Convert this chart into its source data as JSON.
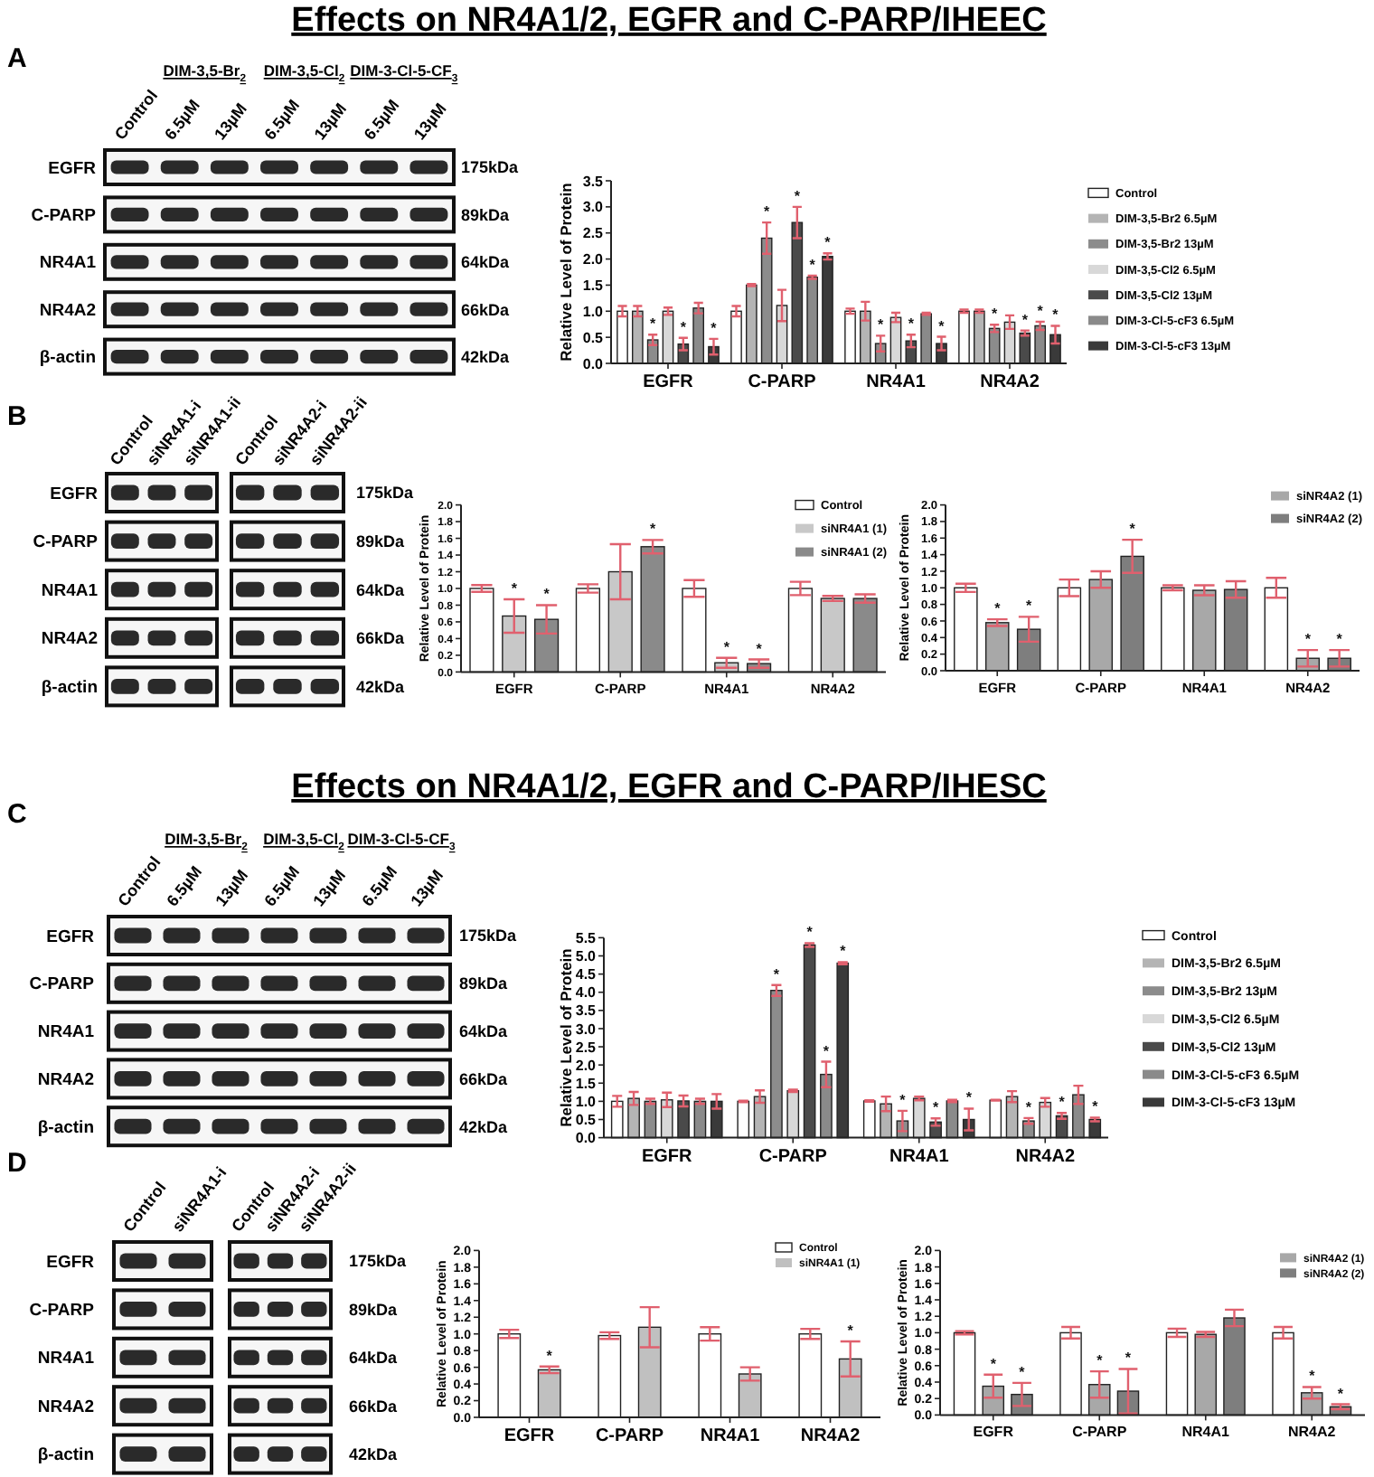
{
  "chart_data": [
    {
      "type": "other",
      "title": "Effects on NR4A1/2, EGFR and C-PARP/IHEEC"
    },
    {
      "type": "other",
      "title": "A",
      "categories": [
        "Control",
        "6.5µM",
        "13µM",
        "6.5µM",
        "13µM",
        "6.5µM",
        "13µM"
      ],
      "y_categories": [
        "EGFR",
        "C-PARP",
        "NR4A1",
        "NR4A2",
        "β-actin"
      ],
      "y2_categories": [
        "175kDa",
        "89kDa",
        "64kDa",
        "66kDa",
        "42kDa"
      ],
      "annotations": [
        "DIM-3,5-Br$_{2}$",
        "DIM-3,5-Cl$_{2}$",
        "DIM-3-Cl-5-CF$_{3}$"
      ]
    },
    {
      "type": "bar",
      "categories": [
        "EGFR",
        "C-PARP",
        "NR4A1",
        "NR4A2"
      ],
      "ylabel": "Relative Level of Protein",
      "ylim": [
        0,
        3.5
      ],
      "yticks": [
        {
          "value": 0,
          "label": "0.0"
        },
        0.5,
        {
          "value": 1,
          "label": "1.0"
        },
        1.5,
        {
          "value": 2,
          "label": "2.0"
        },
        2.5,
        {
          "value": 3,
          "label": "3.0"
        },
        3.5
      ],
      "legend": "right",
      "series": [
        {
          "name": "Control",
          "color": "#ffffff",
          "values": [
            1.0,
            1.0,
            1.0,
            1.0
          ],
          "errors": [
            0.1,
            0.1,
            0.05,
            0.03
          ]
        },
        {
          "name": "DIM-3,5-Br2 6.5µM",
          "color": "#b4b4b4",
          "values": [
            1.0,
            1.5,
            1.0,
            1.0
          ],
          "errors": [
            0.1,
            0.02,
            0.18,
            0.03
          ]
        },
        {
          "name": "DIM-3,5-Br2 13µM",
          "color": "#8c8c8c",
          "values": [
            0.45,
            2.4,
            0.38,
            0.67
          ],
          "errors": [
            0.1,
            0.3,
            0.15,
            0.07
          ],
          "value_labels": [
            "*",
            "*",
            "*",
            "*"
          ]
        },
        {
          "name": "DIM-3,5-Cl2 6.5µM",
          "color": "#d8d8d8",
          "values": [
            1.0,
            1.11,
            0.88,
            0.79
          ],
          "errors": [
            0.07,
            0.3,
            0.09,
            0.13
          ]
        },
        {
          "name": "DIM-3,5-Cl2 13µM",
          "color": "#4a4a4a",
          "values": [
            0.37,
            2.7,
            0.43,
            0.58
          ],
          "errors": [
            0.12,
            0.3,
            0.12,
            0.05
          ],
          "value_labels": [
            "*",
            "*",
            "*",
            "*"
          ]
        },
        {
          "name": "DIM-3-Cl-5-cF3 6.5µM",
          "color": "#8a8a8a",
          "values": [
            1.06,
            1.65,
            0.95,
            0.72
          ],
          "errors": [
            0.1,
            0.03,
            0.02,
            0.08
          ],
          "value_labels": [
            null,
            "*",
            null,
            "*"
          ]
        },
        {
          "name": "DIM-3-Cl-5-cF3 13µM",
          "color": "#3a3a3a",
          "values": [
            0.32,
            2.05,
            0.38,
            0.55
          ],
          "errors": [
            0.15,
            0.06,
            0.13,
            0.17
          ],
          "value_labels": [
            "*",
            "*",
            "*",
            "*"
          ]
        }
      ]
    },
    {
      "type": "other",
      "title": "B",
      "categories": [
        "Control",
        "siNR4A1-i",
        "siNR4A1-ii"
      ],
      "y_categories": [
        "EGFR",
        "C-PARP",
        "NR4A1",
        "NR4A2",
        "β-actin"
      ]
    },
    {
      "type": "other",
      "categories": [
        "Control",
        "siNR4A2-i",
        "siNR4A2-ii"
      ],
      "y2_categories": [
        "175kDa",
        "89kDa",
        "64kDa",
        "66kDa",
        "42kDa"
      ]
    },
    {
      "type": "bar",
      "categories": [
        "EGFR",
        "C-PARP",
        "NR4A1",
        "NR4A2"
      ],
      "ylabel": "Relative Level of Protein",
      "ylim": [
        0,
        2
      ],
      "yticks": [
        {
          "value": 0,
          "label": "0.0"
        },
        0.2,
        0.4,
        0.6,
        0.8,
        {
          "value": 1,
          "label": "1.0"
        },
        1.2,
        1.4,
        1.6,
        1.8,
        {
          "value": 2,
          "label": "2.0"
        }
      ],
      "legend": "top right",
      "series": [
        {
          "name": "Control",
          "color": "#ffffff",
          "values": [
            1.0,
            1.0,
            1.0,
            1.0
          ],
          "errors": [
            0.04,
            0.05,
            0.1,
            0.08
          ]
        },
        {
          "name": "siNR4A1 (1)",
          "color": "#c8c8c8",
          "values": [
            0.67,
            1.2,
            0.11,
            0.88
          ],
          "errors": [
            0.2,
            0.33,
            0.06,
            0.03
          ],
          "value_labels": [
            "*",
            null,
            "*",
            null
          ]
        },
        {
          "name": "siNR4A1 (2)",
          "color": "#8a8a8a",
          "values": [
            0.63,
            1.5,
            0.1,
            0.88
          ],
          "errors": [
            0.17,
            0.08,
            0.05,
            0.05
          ],
          "value_labels": [
            "*",
            "*",
            "*",
            null
          ]
        }
      ]
    },
    {
      "type": "bar",
      "categories": [
        "EGFR",
        "C-PARP",
        "NR4A1",
        "NR4A2"
      ],
      "ylabel": "Relative Level of Protein",
      "ylim": [
        0,
        2
      ],
      "yticks": [
        {
          "value": 0,
          "label": "0.0"
        },
        0.2,
        0.4,
        0.6,
        0.8,
        {
          "value": 1,
          "label": "1.0"
        },
        1.2,
        1.4,
        1.6,
        1.8,
        {
          "value": 2,
          "label": "2.0"
        }
      ],
      "legend": "top right",
      "series": [
        {
          "color": "#ffffff",
          "values": [
            1.0,
            1.0,
            1.0,
            1.0
          ],
          "errors": [
            0.05,
            0.1,
            0.03,
            0.12
          ]
        },
        {
          "name": "siNR4A2 (1)",
          "color": "#a8a8a8",
          "values": [
            0.58,
            1.1,
            0.97,
            0.15
          ],
          "errors": [
            0.04,
            0.1,
            0.06,
            0.1
          ],
          "value_labels": [
            "*",
            null,
            null,
            "*"
          ]
        },
        {
          "name": "siNR4A2 (2)",
          "color": "#7e7e7e",
          "values": [
            0.5,
            1.38,
            0.98,
            0.15
          ],
          "errors": [
            0.15,
            0.2,
            0.1,
            0.1
          ],
          "value_labels": [
            "*",
            "*",
            null,
            "*"
          ]
        }
      ]
    },
    {
      "type": "other",
      "title": "Effects on NR4A1/2, EGFR and C-PARP/IHESC"
    },
    {
      "type": "other",
      "title": "C",
      "categories": [
        "Control",
        "6.5µM",
        "13µM",
        "6.5µM",
        "13µM",
        "6.5µM",
        "13µM"
      ],
      "y_categories": [
        "EGFR",
        "C-PARP",
        "NR4A1",
        "NR4A2",
        "β-actin"
      ],
      "y2_categories": [
        "175kDa",
        "89kDa",
        "64kDa",
        "66kDa",
        "42kDa"
      ],
      "annotations": [
        "DIM-3,5-Br$_{2}$",
        "DIM-3,5-Cl$_{2}$",
        "DIM-3-Cl-5-CF$_{3}$"
      ]
    },
    {
      "type": "bar",
      "categories": [
        "EGFR",
        "C-PARP",
        "NR4A1",
        "NR4A2"
      ],
      "ylabel": "Relative Level of Protein",
      "ylim": [
        0,
        5.5
      ],
      "yticks": [
        {
          "value": 0,
          "label": "0.0"
        },
        0.5,
        {
          "value": 1,
          "label": "1.0"
        },
        1.5,
        {
          "value": 2,
          "label": "2.0"
        },
        2.5,
        {
          "value": 3,
          "label": "3.0"
        },
        3.5,
        {
          "value": 4,
          "label": "4.0"
        },
        4.5,
        {
          "value": 5,
          "label": "5.0"
        },
        5.5
      ],
      "legend": "right",
      "series": [
        {
          "name": "Control",
          "color": "#ffffff",
          "values": [
            1.0,
            1.0,
            1.01,
            1.03
          ],
          "errors": [
            0.15,
            0.02,
            0.02,
            0.01
          ]
        },
        {
          "name": "DIM-3,5-Br2 6.5µM",
          "color": "#b4b4b4",
          "values": [
            1.08,
            1.13,
            0.93,
            1.13
          ],
          "errors": [
            0.18,
            0.17,
            0.2,
            0.15
          ]
        },
        {
          "name": "DIM-3,5-Br2 13µM",
          "color": "#8c8c8c",
          "values": [
            1.0,
            4.05,
            0.46,
            0.46
          ],
          "errors": [
            0.07,
            0.15,
            0.28,
            0.08
          ],
          "value_labels": [
            null,
            "*",
            "*",
            "*"
          ]
        },
        {
          "name": "DIM-3,5-Cl2 6.5µM",
          "color": "#d8d8d8",
          "values": [
            1.04,
            1.29,
            1.08,
            0.97
          ],
          "errors": [
            0.2,
            0.03,
            0.05,
            0.12
          ]
        },
        {
          "name": "DIM-3,5-Cl2 13µM",
          "color": "#4a4a4a",
          "values": [
            1.01,
            5.3,
            0.43,
            0.6
          ],
          "errors": [
            0.15,
            0.05,
            0.1,
            0.08
          ],
          "value_labels": [
            null,
            "*",
            "*",
            "*"
          ]
        },
        {
          "name": "DIM-3-Cl-5-cF3 6.5µM",
          "color": "#8a8a8a",
          "values": [
            1.0,
            1.74,
            1.01,
            1.18
          ],
          "errors": [
            0.07,
            0.35,
            0.03,
            0.25
          ],
          "value_labels": [
            null,
            "*",
            null,
            null
          ]
        },
        {
          "name": "DIM-3-Cl-5-cF3 13µM",
          "color": "#3a3a3a",
          "values": [
            1.0,
            4.8,
            0.5,
            0.5
          ],
          "errors": [
            0.2,
            0.03,
            0.3,
            0.05
          ],
          "value_labels": [
            null,
            "*",
            "*",
            "*"
          ]
        }
      ]
    },
    {
      "type": "other",
      "title": "D",
      "categories": [
        "Control",
        "siNR4A1-i"
      ],
      "y_categories": [
        "EGFR",
        "C-PARP",
        "NR4A1",
        "NR4A2",
        "β-actin"
      ]
    },
    {
      "type": "other",
      "categories": [
        "Control",
        "siNR4A2-i",
        "siNR4A2-ii"
      ],
      "y2_categories": [
        "175kDa",
        "89kDa",
        "64kDa",
        "66kDa",
        "42kDa"
      ]
    },
    {
      "type": "bar",
      "categories": [
        "EGFR",
        "C-PARP",
        "NR4A1",
        "NR4A2"
      ],
      "ylabel": "Relative Level of Protein",
      "ylim": [
        0,
        2
      ],
      "yticks": [
        {
          "value": 0,
          "label": "0.0"
        },
        0.2,
        0.4,
        0.6,
        0.8,
        {
          "value": 1,
          "label": "1.0"
        },
        1.2,
        1.4,
        1.6,
        1.8,
        {
          "value": 2,
          "label": "2.0"
        }
      ],
      "legend": "top right",
      "series": [
        {
          "name": "Control",
          "color": "#ffffff",
          "values": [
            1.0,
            0.98,
            1.0,
            1.0
          ],
          "errors": [
            0.05,
            0.04,
            0.08,
            0.06
          ]
        },
        {
          "name": "siNR4A1 (1)",
          "color": "#c0c0c0",
          "values": [
            0.57,
            1.08,
            0.52,
            0.7
          ],
          "errors": [
            0.04,
            0.24,
            0.08,
            0.21
          ],
          "value_labels": [
            "*",
            null,
            null,
            "*"
          ]
        }
      ]
    },
    {
      "type": "bar",
      "categories": [
        "EGFR",
        "C-PARP",
        "NR4A1",
        "NR4A2"
      ],
      "ylabel": "Relative Level of Protein",
      "ylim": [
        0,
        2
      ],
      "yticks": [
        {
          "value": 0,
          "label": "0.0"
        },
        0.2,
        0.4,
        0.6,
        0.8,
        {
          "value": 1,
          "label": "1.0"
        },
        1.2,
        1.4,
        1.6,
        1.8,
        {
          "value": 2,
          "label": "2.0"
        }
      ],
      "legend": "top right",
      "series": [
        {
          "color": "#ffffff",
          "values": [
            1.0,
            1.0,
            1.0,
            1.0
          ],
          "errors": [
            0.02,
            0.07,
            0.05,
            0.07
          ]
        },
        {
          "name": "siNR4A2 (1)",
          "color": "#a8a8a8",
          "values": [
            0.35,
            0.37,
            0.98,
            0.27
          ],
          "errors": [
            0.14,
            0.16,
            0.03,
            0.07
          ],
          "value_labels": [
            "*",
            "*",
            null,
            "*"
          ]
        },
        {
          "name": "siNR4A2 (2)",
          "color": "#7e7e7e",
          "values": [
            0.25,
            0.29,
            1.18,
            0.1
          ],
          "errors": [
            0.14,
            0.27,
            0.1,
            0.03
          ],
          "value_labels": [
            "*",
            "*",
            null,
            "*"
          ]
        }
      ]
    }
  ]
}
